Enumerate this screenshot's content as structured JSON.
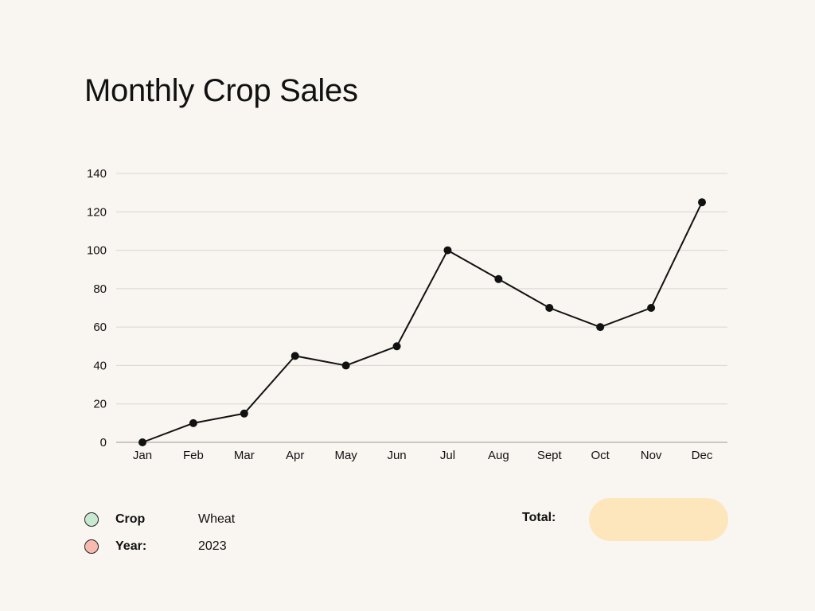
{
  "title": "Monthly Crop Sales",
  "colors": {
    "background": "#f9f6f1",
    "line": "#111111",
    "grid": "#d9d6d1",
    "crop_dot": "#c8ead2",
    "year_dot": "#f7b9b0",
    "total_pill": "#fde6bb"
  },
  "chart_data": {
    "type": "line",
    "title": "Monthly Crop Sales",
    "categories": [
      "Jan",
      "Feb",
      "Mar",
      "Apr",
      "May",
      "Jun",
      "Jul",
      "Aug",
      "Sept",
      "Oct",
      "Nov",
      "Dec"
    ],
    "series": [
      {
        "values": [
          0,
          10,
          15,
          45,
          40,
          50,
          100,
          85,
          70,
          60,
          70,
          125
        ]
      }
    ],
    "yticks": [
      "0",
      "20",
      "40",
      "60",
      "80",
      "100",
      "120",
      "140"
    ],
    "ylim": [
      0,
      140
    ],
    "xlabel": "",
    "ylabel": "",
    "grid": "horizontal",
    "markers": true
  },
  "legend": {
    "crop_label": "Crop",
    "crop_value": "Wheat",
    "year_label": "Year:",
    "year_value": "2023",
    "total_label": "Total:",
    "total_value": ""
  }
}
